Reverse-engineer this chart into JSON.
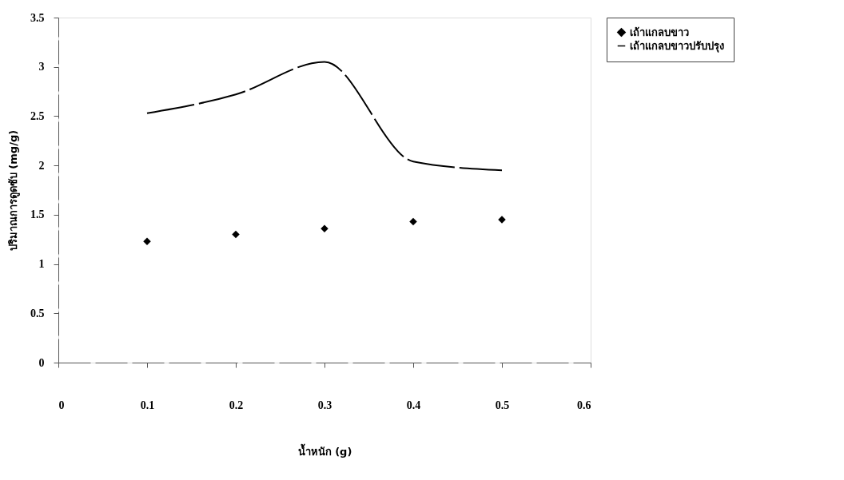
{
  "chart_data": {
    "type": "line",
    "xlabel": "น้ำหนัก (g)",
    "ylabel": "ปริมาณการดูดซับ (mg/g)",
    "x": [
      0.1,
      0.2,
      0.3,
      0.4,
      0.5
    ],
    "series": [
      {
        "name": "เถ้าแกลบขาว",
        "type": "scatter",
        "color": "#000000",
        "marker": "diamond",
        "values": [
          1.23,
          1.3,
          1.36,
          1.43,
          1.45
        ]
      },
      {
        "name": "เถ้าแกลบขาวปรับปรุง",
        "type": "line",
        "color": "#000000",
        "line_style": "dashed",
        "marker": "none",
        "values": [
          2.53,
          2.72,
          3.05,
          2.04,
          1.95
        ]
      }
    ],
    "xlim": [
      0,
      0.6
    ],
    "xticks": [
      0,
      0.1,
      0.2,
      0.3,
      0.4,
      0.5,
      0.6
    ],
    "ylim": [
      0,
      3.5
    ],
    "yticks": [
      0,
      0.5,
      1,
      1.5,
      2,
      2.5,
      3,
      3.5
    ],
    "grid": false,
    "legend": "right"
  }
}
